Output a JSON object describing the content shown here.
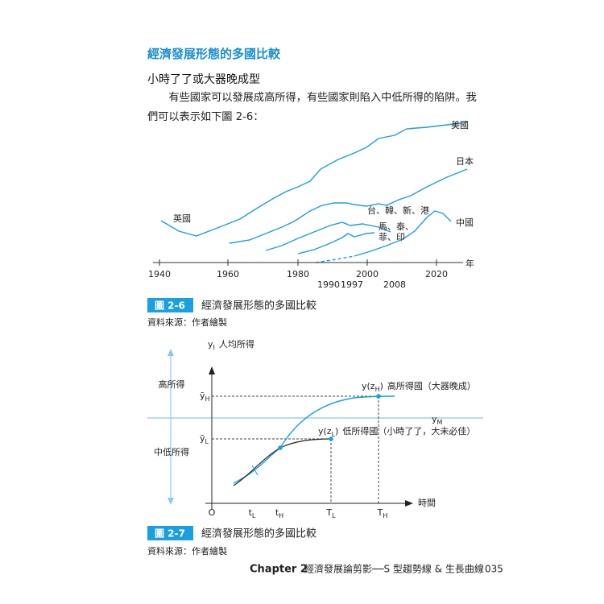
{
  "section_title": "經濟發展形態的多國比較",
  "subsection_title": "小時了了或大器晚成型",
  "paragraph": "有些國家可以發展成高所得，有些國家則陷入中低所得的陷阱。我們可以表示如下圖 2-6：",
  "figure1": {
    "axis_ticks": [
      "1940",
      "1960",
      "1980",
      "2000",
      "2020"
    ],
    "axis_unit": "年",
    "event_years": [
      "1990",
      "1997",
      "2008"
    ],
    "line_labels": [
      "美國",
      "日本",
      "英國",
      "台、韓、新、港",
      "馬、泰、",
      "菲、印",
      "中國"
    ],
    "caption_number": "圖 2-6",
    "caption_title": "經濟發展形態的多國比較",
    "source": "資料來源：作者繪製"
  },
  "figure2": {
    "y_axis": {
      "base": "y",
      "sub": "I",
      "label": "人均所得"
    },
    "x_axis_label": "時間",
    "band_high": "高所得",
    "band_low": "中低所得",
    "y_high": {
      "base": "ȳ",
      "sub": "H"
    },
    "y_low": {
      "base": "ȳ",
      "sub": "L"
    },
    "y_mid": {
      "base": "y",
      "sub": "M"
    },
    "high_curve": {
      "pre": "y(z",
      "sub": "H",
      "post": ")",
      "label": "高所得國（大器晚成）"
    },
    "low_curve": {
      "pre": "y(z",
      "sub": "L",
      "post": ")",
      "label": "低所得國（小時了了，大未必佳）"
    },
    "x_ticks": [
      {
        "base": "O",
        "sub": ""
      },
      {
        "base": "t",
        "sub": "L"
      },
      {
        "base": "t",
        "sub": "H"
      },
      {
        "base": "T",
        "sub": "L"
      },
      {
        "base": "T",
        "sub": "H"
      }
    ],
    "caption_number": "圖 2-7",
    "caption_title": "經濟發展形態的多國比較",
    "source": "資料來源：作者繪製"
  },
  "footer": {
    "chapter": "Chapter 2",
    "title": "經濟發展論剪影──S 型趨勢線 & 生長曲線",
    "page": "035"
  }
}
